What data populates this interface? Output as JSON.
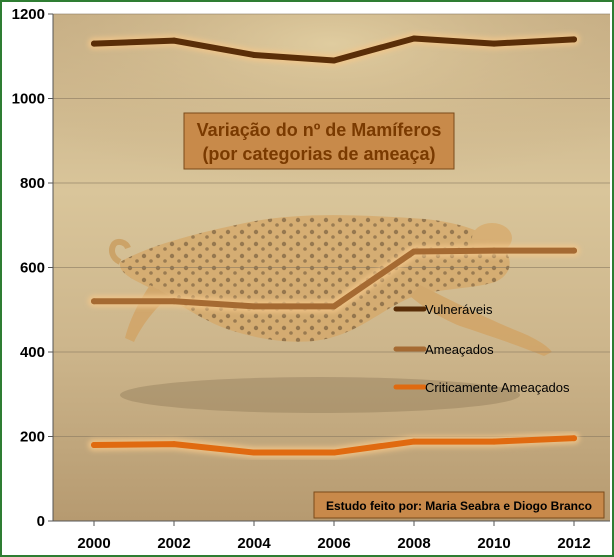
{
  "chart_data": {
    "type": "line",
    "title_lines": [
      "Variação do nº de Mamíferos",
      "(por categorias de ameaça)"
    ],
    "credit": "Estudo feito por: Maria Seabra e Diogo Branco",
    "x": [
      "2000",
      "2002",
      "2004",
      "2006",
      "2008",
      "2010",
      "2012"
    ],
    "ylim": [
      0,
      1200
    ],
    "yticks": [
      0,
      200,
      400,
      600,
      800,
      1000,
      1200
    ],
    "grid": true,
    "legend_position": "right-center",
    "series": [
      {
        "name": "Vulneráveis",
        "color": "#5a2e08",
        "values": [
          1130,
          1137,
          1103,
          1090,
          1142,
          1130,
          1140
        ]
      },
      {
        "name": "Ameaçados",
        "color": "#a56a32",
        "values": [
          520,
          520,
          508,
          508,
          638,
          640,
          640
        ]
      },
      {
        "name": "Criticamente Ameaçados",
        "color": "#e06a10",
        "values": [
          180,
          182,
          162,
          162,
          188,
          188,
          196
        ]
      }
    ]
  }
}
